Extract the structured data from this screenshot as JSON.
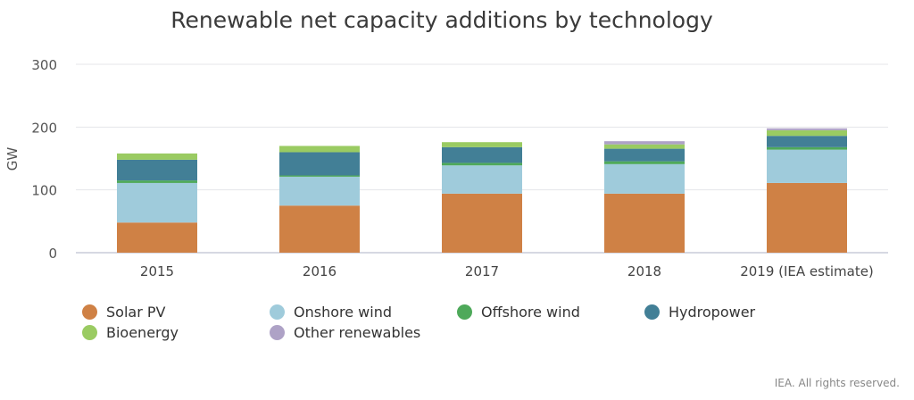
{
  "chart_data": {
    "type": "bar",
    "stacked": true,
    "title": "Renewable net capacity additions by technology",
    "ylabel": "GW",
    "xlabel": "",
    "ylim": [
      0,
      300
    ],
    "yticks": [
      0,
      100,
      200,
      300
    ],
    "grid": true,
    "legend_position": "bottom",
    "categories": [
      "2015",
      "2016",
      "2017",
      "2018",
      "2019 (IEA estimate)"
    ],
    "series": [
      {
        "name": "Solar PV",
        "color": "#cf8145",
        "values": [
          48,
          75,
          94,
          94,
          111
        ]
      },
      {
        "name": "Onshore wind",
        "color": "#9fcbdb",
        "values": [
          63,
          46,
          45,
          47,
          53
        ]
      },
      {
        "name": "Offshore wind",
        "color": "#4ea95a",
        "values": [
          4,
          2,
          4,
          4.5,
          4
        ]
      },
      {
        "name": "Hydropower",
        "color": "#427f96",
        "values": [
          33,
          37,
          25,
          20,
          18
        ]
      },
      {
        "name": "Bioenergy",
        "color": "#9acb62",
        "values": [
          10,
          10,
          8,
          7,
          9
        ]
      },
      {
        "name": "Other renewables",
        "color": "#aea2c6",
        "values": [
          0,
          0,
          0,
          5,
          3
        ]
      }
    ]
  },
  "credit": "IEA. All rights reserved."
}
